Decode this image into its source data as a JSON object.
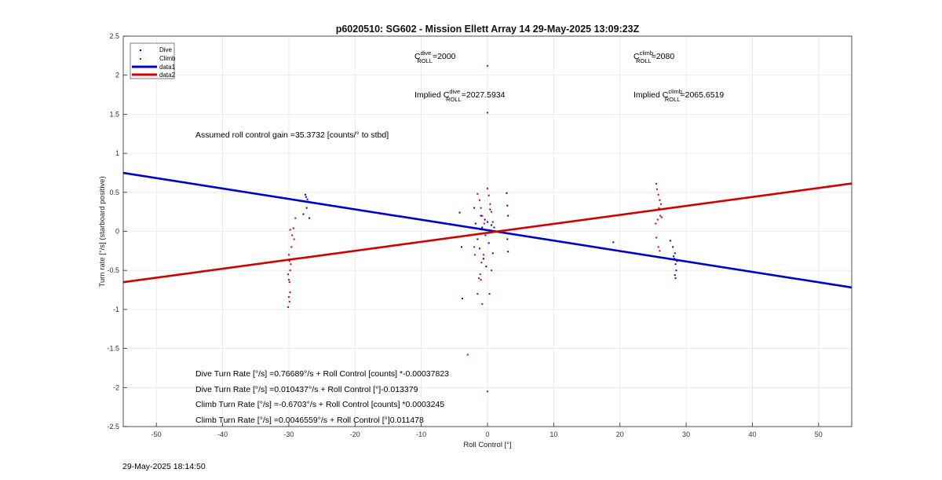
{
  "chart_data": {
    "type": "scatter",
    "title": "p6020510: SG602 - Mission Ellett Array 14 29-May-2025 13:09:23Z",
    "xlabel": "Roll Control [°]",
    "ylabel": "Turn rate [°/s] (starboard positive)",
    "xlim": [
      -55,
      55
    ],
    "ylim": [
      -2.5,
      2.5
    ],
    "xticks": [
      -50,
      -40,
      -30,
      -20,
      -10,
      0,
      10,
      20,
      30,
      40,
      50
    ],
    "yticks": [
      -2.5,
      -2,
      -1.5,
      -1,
      -0.5,
      0,
      0.5,
      1,
      1.5,
      2,
      2.5
    ],
    "grid": true,
    "legend": {
      "placement": "top-left",
      "entries": [
        {
          "label": "Dive",
          "kind": "marker",
          "color": "#0000cc"
        },
        {
          "label": "Climb",
          "kind": "marker",
          "color": "#d40000"
        },
        {
          "label": "data1",
          "kind": "line",
          "color": "#0000cc"
        },
        {
          "label": "data2",
          "kind": "line",
          "color": "#d40000"
        }
      ]
    },
    "series": [
      {
        "name": "Dive",
        "type": "scatter",
        "color": "#0000cc",
        "points": [
          [
            -27.5,
            0.47
          ],
          [
            -27.4,
            0.44
          ],
          [
            -27.2,
            0.41
          ],
          [
            -27.0,
            0.38
          ],
          [
            -27.3,
            0.3
          ],
          [
            -27.8,
            0.22
          ],
          [
            -26.9,
            0.17
          ],
          [
            -4.2,
            0.24
          ],
          [
            -3.9,
            -0.2
          ],
          [
            -3.8,
            -0.86
          ],
          [
            -2.0,
            0.3
          ],
          [
            -1.8,
            0.1
          ],
          [
            -1.5,
            -0.1
          ],
          [
            -1.2,
            -0.22
          ],
          [
            -1.0,
            0.2
          ],
          [
            -0.8,
            0.05
          ],
          [
            -0.6,
            -0.35
          ],
          [
            -0.4,
            0.15
          ],
          [
            -0.3,
            -0.05
          ],
          [
            0.0,
            0.12
          ],
          [
            0.2,
            -0.15
          ],
          [
            0.4,
            0.28
          ],
          [
            0.6,
            0.08
          ],
          [
            0.8,
            -0.28
          ],
          [
            1.0,
            0.05
          ],
          [
            -0.2,
            -0.45
          ],
          [
            2.9,
            0.49
          ],
          [
            3.0,
            0.33
          ],
          [
            3.1,
            0.2
          ],
          [
            3.0,
            -0.1
          ],
          [
            3.1,
            -0.26
          ],
          [
            19.0,
            -0.14
          ],
          [
            27.6,
            -0.12
          ],
          [
            28.0,
            -0.2
          ],
          [
            28.3,
            -0.28
          ],
          [
            28.2,
            -0.35
          ],
          [
            28.4,
            -0.42
          ],
          [
            28.5,
            -0.5
          ],
          [
            28.3,
            -0.56
          ],
          [
            28.4,
            -0.6
          ],
          [
            28.6,
            -0.38
          ],
          [
            28.1,
            -0.32
          ]
        ]
      },
      {
        "name": "Climb",
        "type": "scatter",
        "color": "#d40000",
        "points": [
          [
            -29.0,
            0.17
          ],
          [
            -29.3,
            0.04
          ],
          [
            -29.8,
            0.02
          ],
          [
            -29.5,
            -0.05
          ],
          [
            -29.2,
            -0.1
          ],
          [
            -29.6,
            -0.2
          ],
          [
            -30.0,
            -0.3
          ],
          [
            -29.9,
            -0.38
          ],
          [
            -29.7,
            -0.42
          ],
          [
            -29.8,
            -0.5
          ],
          [
            -30.1,
            -0.55
          ],
          [
            -30.0,
            -0.62
          ],
          [
            -29.9,
            -0.65
          ],
          [
            -29.8,
            -0.78
          ],
          [
            -30.0,
            -0.84
          ],
          [
            -29.9,
            -0.9
          ],
          [
            -30.1,
            -0.97
          ],
          [
            -1.5,
            0.48
          ],
          [
            -1.2,
            0.4
          ],
          [
            -1.0,
            0.3
          ],
          [
            -0.8,
            0.2
          ],
          [
            -0.5,
            0.1
          ],
          [
            -0.3,
            -0.02
          ],
          [
            0.0,
            0.55
          ],
          [
            0.2,
            0.46
          ],
          [
            0.4,
            0.35
          ],
          [
            0.6,
            0.25
          ],
          [
            0.8,
            0.12
          ],
          [
            -0.6,
            -0.3
          ],
          [
            -0.9,
            -0.4
          ],
          [
            -1.1,
            -0.55
          ],
          [
            -1.3,
            -0.6
          ],
          [
            -1.5,
            -0.8
          ],
          [
            -0.8,
            -0.93
          ],
          [
            -3.0,
            -1.58
          ],
          [
            0.0,
            2.12
          ],
          [
            0.0,
            1.52
          ],
          [
            0.0,
            -2.05
          ],
          [
            -1.0,
            -0.62
          ],
          [
            0.3,
            -0.8
          ],
          [
            0.6,
            -0.5
          ],
          [
            -2.0,
            -0.2
          ],
          [
            -1.9,
            -0.3
          ],
          [
            25.5,
            0.61
          ],
          [
            25.6,
            0.54
          ],
          [
            25.8,
            0.47
          ],
          [
            26.0,
            0.4
          ],
          [
            25.9,
            0.3
          ],
          [
            26.1,
            0.2
          ],
          [
            25.7,
            0.15
          ],
          [
            25.4,
            0.1
          ],
          [
            25.5,
            -0.08
          ],
          [
            25.8,
            -0.2
          ],
          [
            26.0,
            -0.25
          ],
          [
            26.3,
            0.18
          ],
          [
            26.2,
            0.35
          ]
        ]
      },
      {
        "name": "data1",
        "type": "line",
        "color": "#0000cc",
        "points": [
          [
            -55,
            0.749
          ],
          [
            55,
            -0.719
          ]
        ]
      },
      {
        "name": "data2",
        "type": "line",
        "color": "#d40000",
        "points": [
          [
            -55,
            -0.651
          ],
          [
            55,
            0.613
          ]
        ]
      }
    ],
    "annotations": [
      {
        "id": "cdive",
        "base": "C",
        "sup": "dive",
        "sub": "ROLL",
        "rest": "=2000",
        "prefix": ""
      },
      {
        "id": "cclimb",
        "base": "C",
        "sup": "climb",
        "sub": "ROLL",
        "rest": "=2080",
        "prefix": ""
      },
      {
        "id": "idive",
        "prefix": "Implied ",
        "base": "C",
        "sup": "dive",
        "sub": "ROLL",
        "rest": "=2027.5934"
      },
      {
        "id": "iclimb",
        "prefix": "Implied ",
        "base": "C",
        "sup": "climb",
        "sub": "ROLL",
        "rest": "=2065.6519"
      }
    ],
    "text_notes": {
      "gain": "Assumed roll control gain =35.3732 [counts/° to stbd]",
      "eq1": "Dive Turn Rate [°/s] =0.76689°/s + Roll Control [counts] *-0.00037823",
      "eq2": "Dive Turn Rate [°/s] =0.010437°/s + Roll Control [°]-0.013379",
      "eq3": "Climb Turn Rate [°/s] =-0.6703°/s + Roll Control [counts] *0.0003245",
      "eq4": "Climb Turn Rate [°/s] =0.0046559°/s + Roll Control [°]0.011478"
    }
  },
  "footer": {
    "timestamp": "29-May-2025 18:14:50"
  }
}
